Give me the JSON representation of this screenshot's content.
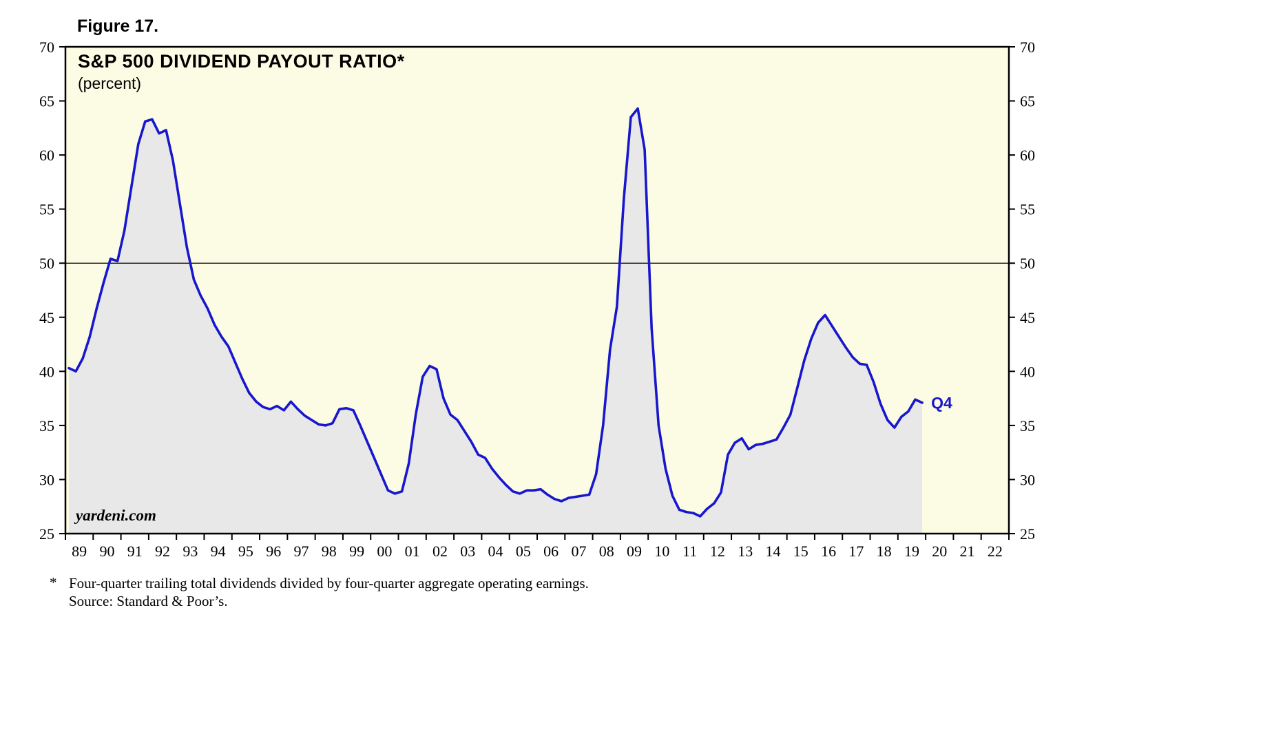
{
  "figure": {
    "label": "Figure 17."
  },
  "watermark": "yardeni.com",
  "footnote": {
    "marker": "*",
    "line1": "Four-quarter trailing total dividends divided by four-quarter aggregate operating earnings.",
    "line2": "Source: Standard & Poor’s."
  },
  "chart_data": {
    "type": "line",
    "title": "S&P 500 DIVIDEND PAYOUT RATIO*",
    "subtitle": "(percent)",
    "end_label": "Q4",
    "ylabel": "percent",
    "ylim": [
      25,
      70
    ],
    "y_ticks": [
      25,
      30,
      35,
      40,
      45,
      50,
      55,
      60,
      65,
      70
    ],
    "reference_line_y": 50,
    "x_start_year": 1989,
    "x_end_year": 2023,
    "x_tick_labels": [
      "89",
      "90",
      "91",
      "92",
      "93",
      "94",
      "95",
      "96",
      "97",
      "98",
      "99",
      "00",
      "01",
      "02",
      "03",
      "04",
      "05",
      "06",
      "07",
      "08",
      "09",
      "10",
      "11",
      "12",
      "13",
      "14",
      "15",
      "16",
      "17",
      "18",
      "19",
      "20",
      "21",
      "22"
    ],
    "grid": "horizontal-at-50-only",
    "legend": "none",
    "series": [
      {
        "name": "S&P 500 dividend payout ratio",
        "frequency": "quarterly",
        "start": "1989Q1",
        "end": "2019Q4",
        "values": [
          40.3,
          40.0,
          41.2,
          43.2,
          45.8,
          48.2,
          50.4,
          50.2,
          53.0,
          57.0,
          61.0,
          63.1,
          63.3,
          62.0,
          62.3,
          59.5,
          55.5,
          51.5,
          48.5,
          47.0,
          45.8,
          44.3,
          43.2,
          42.3,
          40.8,
          39.3,
          38.0,
          37.2,
          36.7,
          36.5,
          36.8,
          36.4,
          37.2,
          36.5,
          35.9,
          35.5,
          35.1,
          35.0,
          35.2,
          36.5,
          36.6,
          36.4,
          35.0,
          33.5,
          32.0,
          30.5,
          29.0,
          28.7,
          28.9,
          31.5,
          36.0,
          39.5,
          40.5,
          40.2,
          37.5,
          36.0,
          35.5,
          34.5,
          33.5,
          32.3,
          32.0,
          31.0,
          30.2,
          29.5,
          28.9,
          28.7,
          29.0,
          29.0,
          29.1,
          28.6,
          28.2,
          28.0,
          28.3,
          28.4,
          28.5,
          28.6,
          30.5,
          35.0,
          42.0,
          46.0,
          56.0,
          63.5,
          64.3,
          60.5,
          44.0,
          35.0,
          31.0,
          28.5,
          27.2,
          27.0,
          26.9,
          26.6,
          27.3,
          27.8,
          28.8,
          32.3,
          33.4,
          33.8,
          32.8,
          33.2,
          33.3,
          33.5,
          33.7,
          34.8,
          36.0,
          38.5,
          41.0,
          43.0,
          44.5,
          45.2,
          44.2,
          43.2,
          42.2,
          41.3,
          40.7,
          40.6,
          39.0,
          37.0,
          35.5,
          34.8,
          35.8,
          36.3,
          37.4,
          37.1
        ]
      }
    ],
    "colors": {
      "line": "#1717cd",
      "fill": "#e8e8e8",
      "plot_bg": "#fcfbe3",
      "frame": "#000000",
      "end_label": "#1717cd"
    }
  }
}
